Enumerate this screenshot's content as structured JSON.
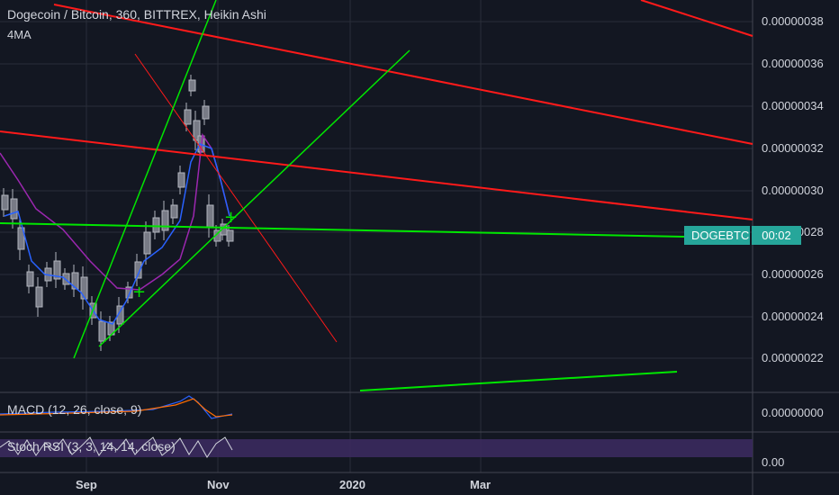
{
  "header": {
    "title": "Dogecoin / Bitcoin, 360, BITTREX, Heikin Ashi",
    "indicator": "4MA"
  },
  "price_axis": [
    "0.00000038",
    "0.00000036",
    "0.00000034",
    "0.00000032",
    "0.00000030",
    "0.00000028",
    "0.00000026",
    "0.00000024",
    "0.00000022"
  ],
  "macd": {
    "label": "MACD (12, 26, close, 9)",
    "axis_value": "0.00000000"
  },
  "stoch": {
    "label": "Stoch RSI (3, 3, 14, 14, close)",
    "axis_value": "0.00"
  },
  "time_axis": [
    "Sep",
    "Nov",
    "2020",
    "Mar"
  ],
  "badge": {
    "symbol": "DOGEBTC",
    "countdown": "00:02"
  },
  "colors": {
    "background": "#131722",
    "grid": "#2a2e39",
    "trend_green": "#00e600",
    "trend_red": "#ff1a1a",
    "ma_blue": "#2962ff",
    "ma_magenta": "#9c27b0",
    "candle": "#b2b5be",
    "badge": "#26a69a",
    "stoch_band": "#3b2a5e"
  },
  "chart_data": {
    "type": "candlestick",
    "style": "Heikin Ashi",
    "pair": "DOGE/BTC",
    "x": [
      "Sep",
      "Nov",
      "2020",
      "Mar"
    ],
    "ylim": [
      2.1e-07,
      3.85e-07
    ],
    "last_price_note": "0.00000028",
    "trend_lines_visible": true,
    "grid": true
  }
}
